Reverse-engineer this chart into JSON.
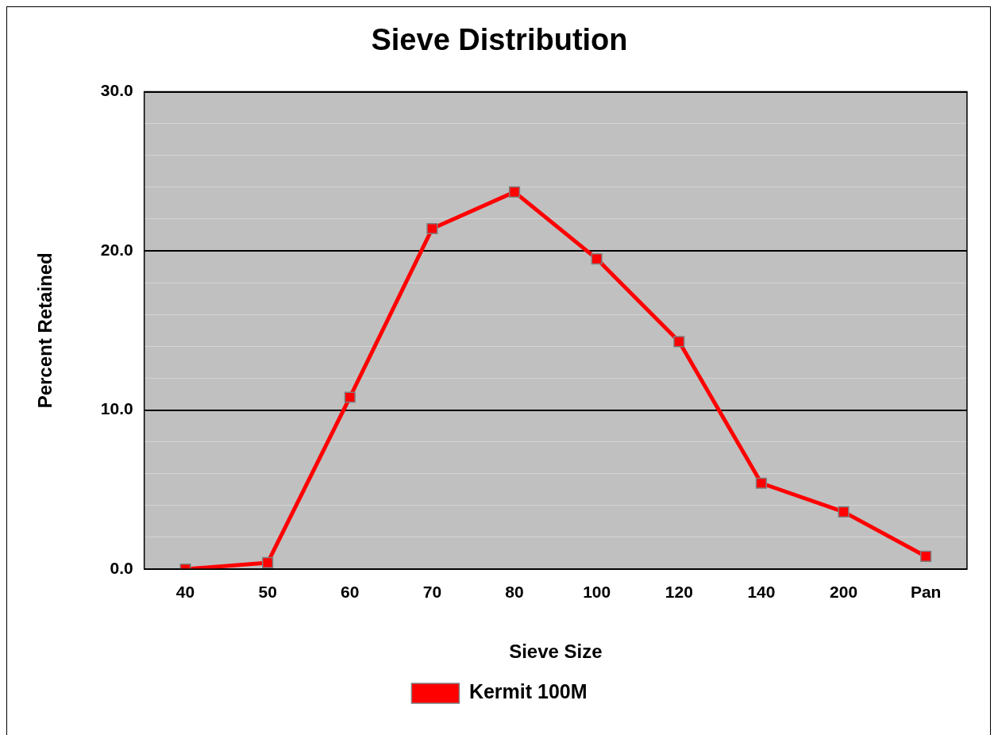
{
  "chart_data": {
    "type": "line",
    "title": "Sieve Distribution",
    "xlabel": "Sieve Size",
    "ylabel": "Percent Retained",
    "categories": [
      "40",
      "50",
      "60",
      "70",
      "80",
      "100",
      "120",
      "140",
      "200",
      "Pan"
    ],
    "series": [
      {
        "name": "Kermit 100M",
        "color": "#ff0000",
        "values": [
          0.0,
          0.4,
          10.8,
          21.4,
          23.7,
          19.5,
          14.3,
          5.4,
          3.6,
          0.8
        ]
      }
    ],
    "ylim": [
      0,
      30
    ],
    "yticks": [
      {
        "value": 0,
        "label": "0.0"
      },
      {
        "value": 2,
        "label": null
      },
      {
        "value": 4,
        "label": null
      },
      {
        "value": 6,
        "label": null
      },
      {
        "value": 8,
        "label": null
      },
      {
        "value": 10,
        "label": "10.0"
      },
      {
        "value": 12,
        "label": null
      },
      {
        "value": 14,
        "label": null
      },
      {
        "value": 16,
        "label": null
      },
      {
        "value": 18,
        "label": null
      },
      {
        "value": 20,
        "label": "20.0"
      },
      {
        "value": 22,
        "label": null
      },
      {
        "value": 24,
        "label": null
      },
      {
        "value": 26,
        "label": null
      },
      {
        "value": 28,
        "label": null
      },
      {
        "value": 30,
        "label": "30.0"
      }
    ],
    "grid": "y",
    "legend": "bottom",
    "marker": "square",
    "line_style": "solid"
  }
}
